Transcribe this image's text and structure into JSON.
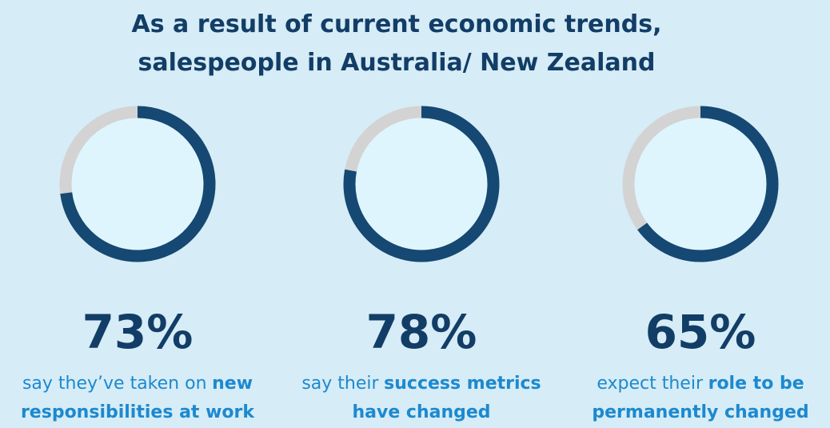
{
  "title": [
    "As a result of current economic trends,",
    "salespeople in Australia/ New Zealand"
  ],
  "chart_data": [
    {
      "type": "donut",
      "values": [
        73
      ],
      "value_labels": [
        "73%"
      ],
      "ylim": [
        0,
        100
      ],
      "color": "#154872",
      "track_color": "#d3d3d3",
      "caption": [
        [
          {
            "text": "say they’ve taken on",
            "bold": false
          },
          {
            "text": "new",
            "bold": true
          }
        ],
        [
          {
            "text": "responsibilities at work",
            "bold": true
          }
        ]
      ]
    },
    {
      "type": "donut",
      "values": [
        78
      ],
      "value_labels": [
        "78%"
      ],
      "ylim": [
        0,
        100
      ],
      "color": "#154872",
      "track_color": "#d3d3d3",
      "caption": [
        [
          {
            "text": "say their",
            "bold": false
          },
          {
            "text": "success metrics",
            "bold": true
          }
        ],
        [
          {
            "text": "have changed",
            "bold": true
          }
        ]
      ]
    },
    {
      "type": "donut",
      "values": [
        65
      ],
      "value_labels": [
        "65%"
      ],
      "ylim": [
        0,
        100
      ],
      "color": "#154872",
      "track_color": "#d3d3d3",
      "caption": [
        [
          {
            "text": "expect their",
            "bold": false
          },
          {
            "text": "role to be",
            "bold": true
          }
        ],
        [
          {
            "text": "permanently changed",
            "bold": true
          }
        ]
      ]
    }
  ]
}
